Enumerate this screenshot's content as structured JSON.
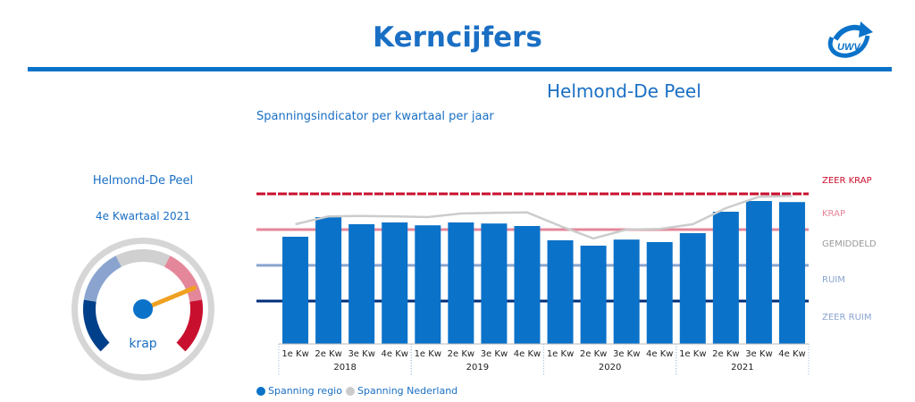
{
  "header": {
    "title": "Kerncijfers",
    "logo_text": "UWV"
  },
  "region_title": "Helmond-De Peel",
  "gauge": {
    "region": "Helmond-De Peel",
    "period": "4e Kwartaal 2021",
    "label": "krap",
    "needle_level": 0.75,
    "colors": {
      "ruim": "#003f8a",
      "ruim_light": "#8aa4cf",
      "gemiddeld": "#d0d0d0",
      "krap": "#e5879a",
      "zeer_krap": "#c8102e",
      "needle": "#f0a020",
      "hub": "#0b72c9"
    }
  },
  "chart_data": {
    "type": "bar",
    "title": "Spanningsindicator per kwartaal per jaar",
    "categories": [
      "1e Kw",
      "2e Kw",
      "3e Kw",
      "4e Kw",
      "1e Kw",
      "2e Kw",
      "3e Kw",
      "4e Kw",
      "1e Kw",
      "2e Kw",
      "3e Kw",
      "4e Kw",
      "1e Kw",
      "2e Kw",
      "3e Kw",
      "4e Kw"
    ],
    "groups": [
      {
        "label": "2018",
        "count": 4
      },
      {
        "label": "2019",
        "count": 4
      },
      {
        "label": "2020",
        "count": 4
      },
      {
        "label": "2021",
        "count": 4
      }
    ],
    "series": [
      {
        "name": "Spanning regio",
        "type": "bar",
        "color": "#0b72c9",
        "values": [
          3.0,
          3.55,
          3.35,
          3.4,
          3.32,
          3.4,
          3.37,
          3.3,
          2.9,
          2.75,
          2.92,
          2.85,
          3.1,
          3.7,
          4.0,
          3.97
        ]
      },
      {
        "name": "Spanning Nederland",
        "type": "line",
        "color": "#cccccc",
        "values": [
          3.35,
          3.57,
          3.58,
          3.57,
          3.55,
          3.65,
          3.67,
          3.68,
          3.3,
          2.95,
          3.2,
          3.22,
          3.35,
          3.8,
          4.12,
          4.14
        ]
      }
    ],
    "ylim": [
      0,
      4.5
    ],
    "bands": [
      {
        "label": "ZEER KRAP",
        "value": 4.2,
        "color": "#c8102e",
        "text_color": "#c8102e",
        "dashed": true
      },
      {
        "label": "KRAP",
        "value": 3.2,
        "color": "#e5879a",
        "text_color": "#e5879a"
      },
      {
        "label": "GEMIDDELD",
        "value": null,
        "text_color": "#999999"
      },
      {
        "label": "RUIM",
        "value": 2.2,
        "color": "#8aa4cf",
        "text_color": "#8aa4cf"
      },
      {
        "label": "ZEER RUIM",
        "value": 1.2,
        "color": "#002e7a",
        "text_color": "#8aa4cf"
      }
    ]
  }
}
